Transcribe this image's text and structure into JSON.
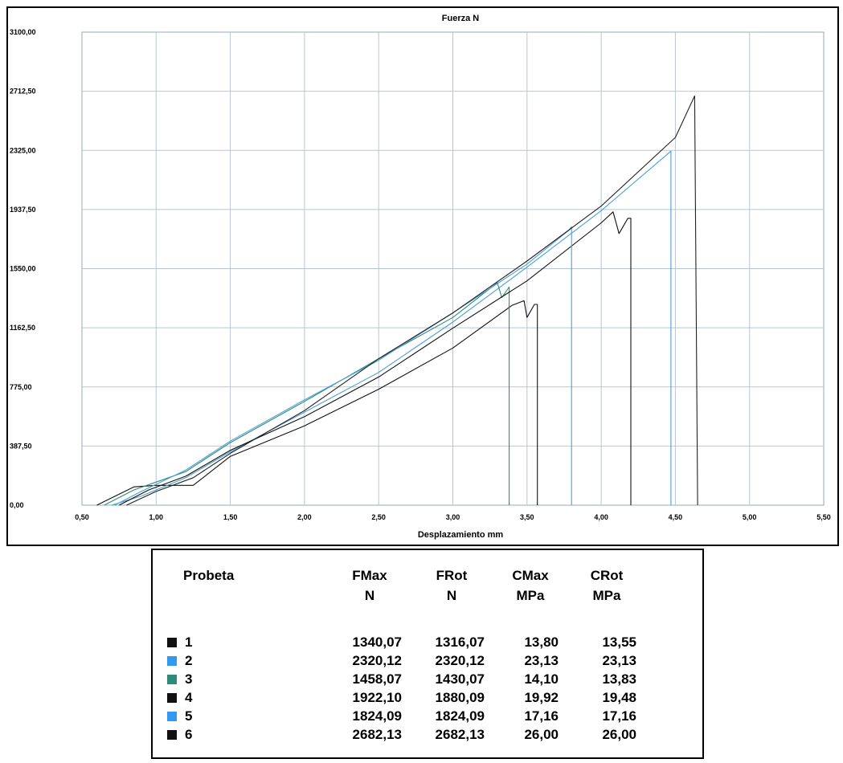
{
  "chart_data": {
    "type": "line",
    "title": "Fuerza  N",
    "xlabel": "Desplazamiento  mm",
    "ylabel": "",
    "xlim": [
      0.5,
      5.5
    ],
    "ylim": [
      0,
      3100
    ],
    "grid": true,
    "x_ticks": [
      "0,50",
      "1,00",
      "1,50",
      "2,00",
      "2,50",
      "3,00",
      "3,50",
      "4,00",
      "4,50",
      "5,00",
      "5,50"
    ],
    "y_ticks": [
      "0,00",
      "387,50",
      "775,00",
      "1162,50",
      "1550,00",
      "1937,50",
      "2325,00",
      "2712,50",
      "3100,00"
    ],
    "series": [
      {
        "name": "1",
        "color": "#111111",
        "x": [
          0.6,
          0.85,
          1.0,
          1.25,
          1.5,
          2.0,
          2.5,
          3.0,
          3.4,
          3.48,
          3.5,
          3.55,
          3.57,
          3.57
        ],
        "y": [
          0,
          120,
          130,
          130,
          320,
          520,
          760,
          1030,
          1310,
          1340,
          1230,
          1316,
          1316,
          0
        ]
      },
      {
        "name": "2",
        "color": "#4a9fd4",
        "x": [
          0.7,
          0.9,
          1.2,
          1.5,
          2.0,
          2.5,
          3.0,
          3.5,
          4.0,
          4.47,
          4.47
        ],
        "y": [
          0,
          60,
          180,
          350,
          610,
          870,
          1200,
          1560,
          1930,
          2320,
          0
        ]
      },
      {
        "name": "3",
        "color": "#2e8b7a",
        "x": [
          0.65,
          0.85,
          1.2,
          1.5,
          2.0,
          2.5,
          3.0,
          3.25,
          3.3,
          3.33,
          3.38,
          3.38
        ],
        "y": [
          0,
          100,
          220,
          410,
          680,
          960,
          1230,
          1420,
          1458,
          1360,
          1430,
          0
        ]
      },
      {
        "name": "4",
        "color": "#111111",
        "x": [
          0.75,
          0.95,
          1.2,
          1.5,
          2.0,
          2.5,
          3.0,
          3.5,
          4.0,
          4.08,
          4.12,
          4.18,
          4.2,
          4.2
        ],
        "y": [
          0,
          100,
          190,
          360,
          580,
          840,
          1160,
          1470,
          1850,
          1922,
          1780,
          1880,
          1880,
          0
        ]
      },
      {
        "name": "5",
        "color": "#4a9fd4",
        "x": [
          0.72,
          0.9,
          1.2,
          1.5,
          2.0,
          2.5,
          3.0,
          3.5,
          3.78,
          3.8,
          3.8
        ],
        "y": [
          0,
          90,
          230,
          420,
          690,
          950,
          1260,
          1580,
          1800,
          1824,
          0
        ]
      },
      {
        "name": "6",
        "color": "#222222",
        "x": [
          0.8,
          1.0,
          1.25,
          1.5,
          2.0,
          2.5,
          3.0,
          3.5,
          4.0,
          4.5,
          4.63,
          4.65
        ],
        "y": [
          0,
          90,
          180,
          340,
          620,
          960,
          1260,
          1600,
          1960,
          2410,
          2682,
          0
        ]
      }
    ]
  },
  "table": {
    "headers": [
      {
        "top": "Probeta",
        "bottom": ""
      },
      {
        "top": "FMax",
        "bottom": "N"
      },
      {
        "top": "FRot",
        "bottom": "N"
      },
      {
        "top": "CMax",
        "bottom": "MPa"
      },
      {
        "top": "CRot",
        "bottom": "MPa"
      }
    ],
    "rows": [
      {
        "id": "1",
        "color": "#111111",
        "fmax": "1340,07",
        "frot": "1316,07",
        "cmax": "13,80",
        "crot": "13,55"
      },
      {
        "id": "2",
        "color": "#3399ee",
        "fmax": "2320,12",
        "frot": "2320,12",
        "cmax": "23,13",
        "crot": "23,13"
      },
      {
        "id": "3",
        "color": "#2e8b7a",
        "fmax": "1458,07",
        "frot": "1430,07",
        "cmax": "14,10",
        "crot": "13,83"
      },
      {
        "id": "4",
        "color": "#111111",
        "fmax": "1922,10",
        "frot": "1880,09",
        "cmax": "19,92",
        "crot": "19,48"
      },
      {
        "id": "5",
        "color": "#3399ee",
        "fmax": "1824,09",
        "frot": "1824,09",
        "cmax": "17,16",
        "crot": "17,16"
      },
      {
        "id": "6",
        "color": "#111111",
        "fmax": "2682,13",
        "frot": "2682,13",
        "cmax": "26,00",
        "crot": "26,00"
      }
    ]
  }
}
